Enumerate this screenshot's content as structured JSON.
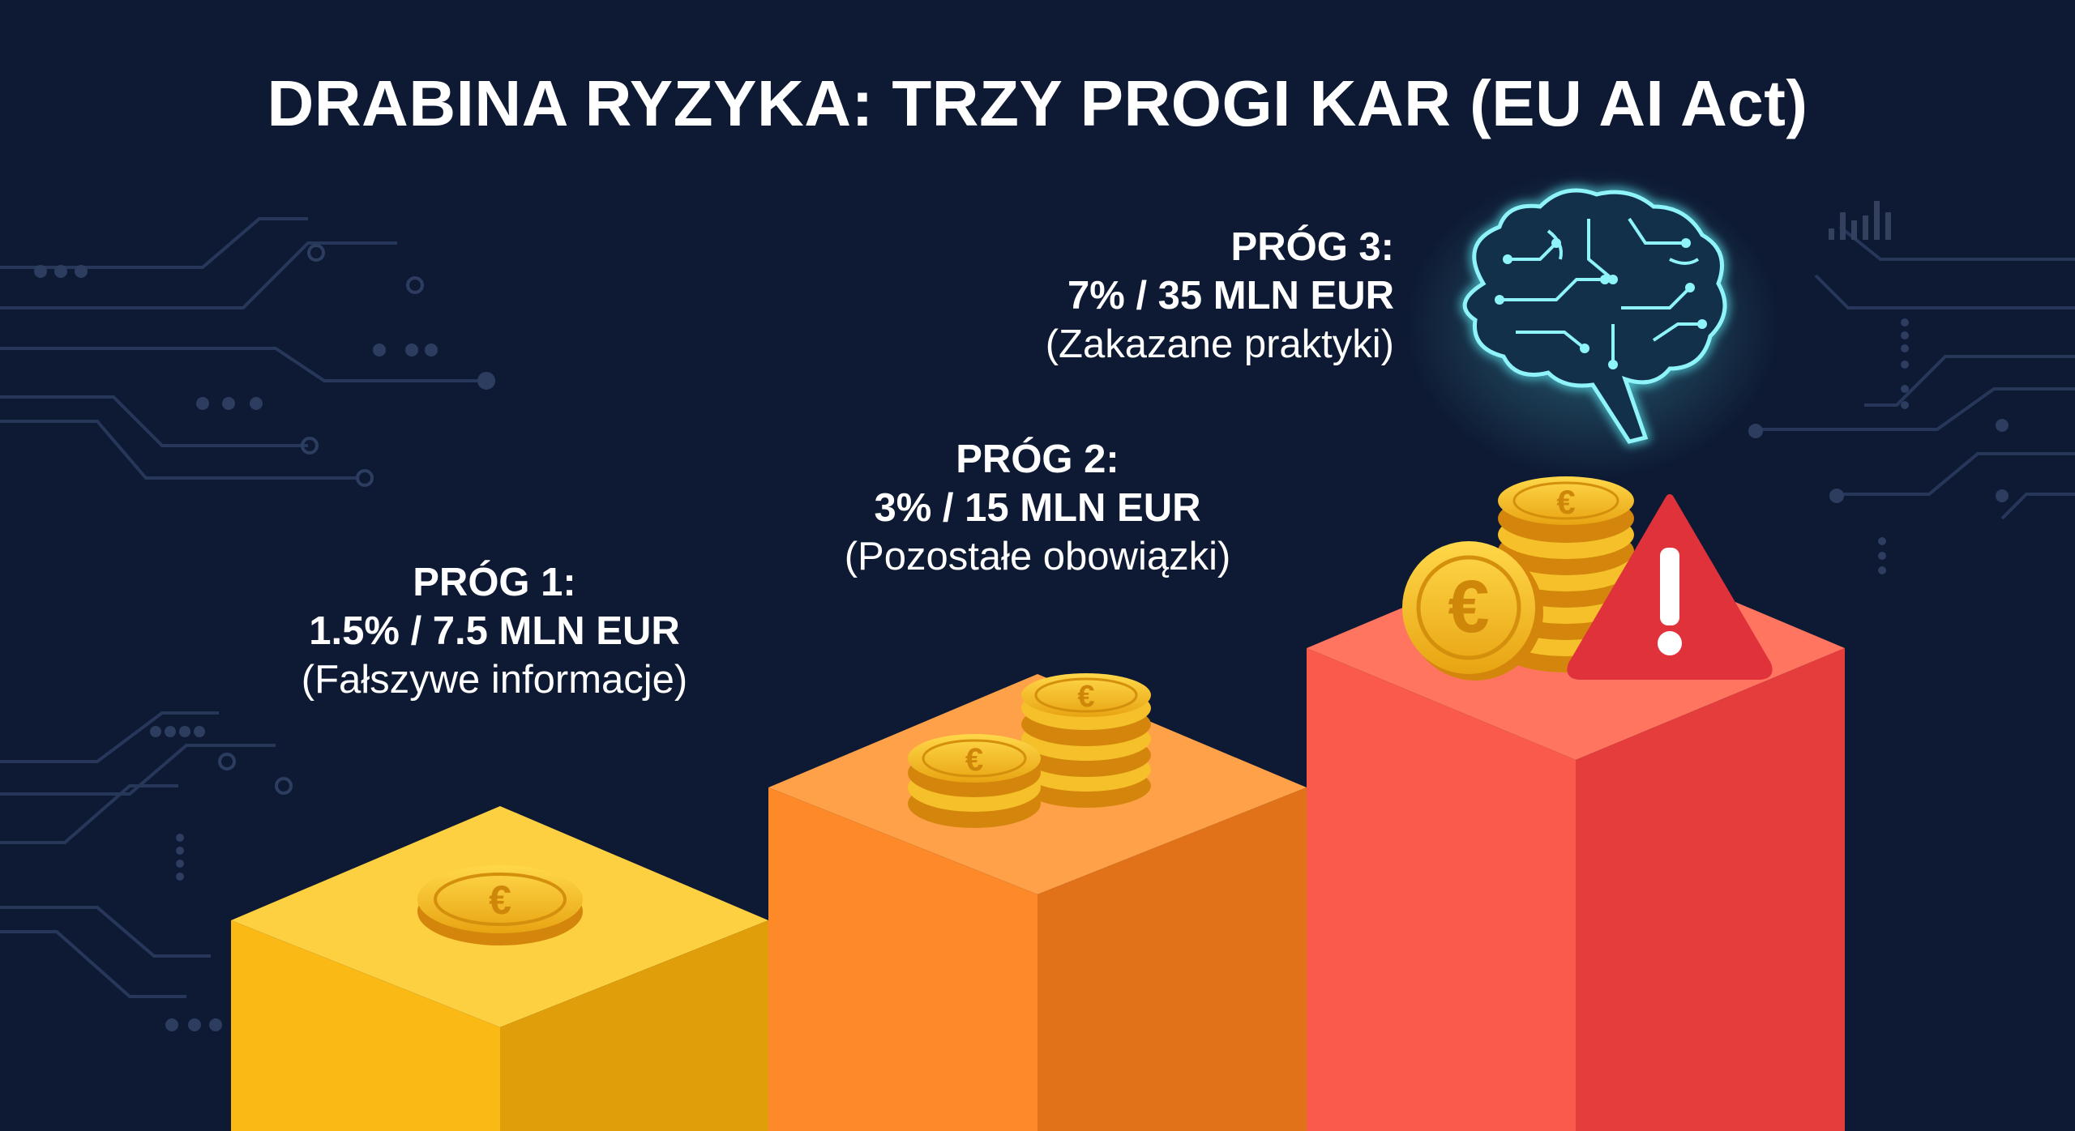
{
  "title": "DRABINA RYZYKA: TRZY PROGI KAR (EU AI Act)",
  "tiers": [
    {
      "head": "PRÓG 1:",
      "penalty": "1.5% / 7.5 MLN EUR",
      "desc": "(Fałszywe informacje)",
      "color": "#fbbf24"
    },
    {
      "head": "PRÓG 2:",
      "penalty": "3% / 15 MLN EUR",
      "desc": "(Pozostałe obowiązki)",
      "color": "#fb8c2e"
    },
    {
      "head": "PRÓG 3:",
      "penalty": "7% / 35 MLN EUR",
      "desc": "(Zakazane praktyki)",
      "color": "#f0544a"
    }
  ],
  "colors": {
    "background": "#0e1a33",
    "circuit": "#2a3a58",
    "coin": "#f2b51e",
    "warning": "#e0323a",
    "brain_glow": "#5ce6f0"
  },
  "icons": [
    "euro-coin-icon",
    "coin-stack-icon",
    "warning-triangle-icon",
    "circuit-brain-icon",
    "bar-chart-icon"
  ]
}
